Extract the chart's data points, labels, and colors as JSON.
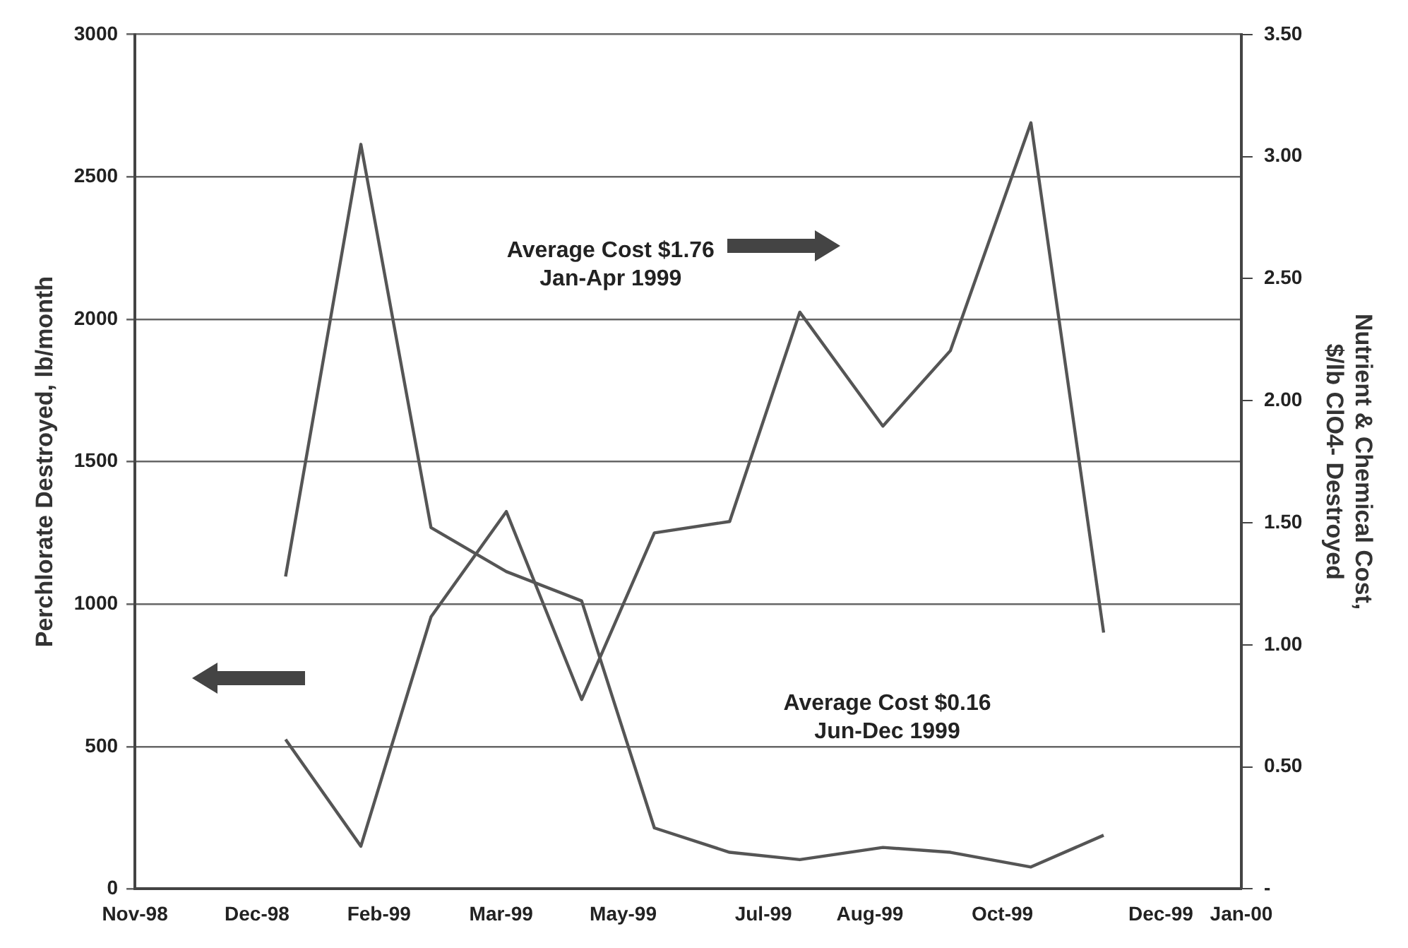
{
  "chart_data": {
    "type": "line",
    "x": [
      "1998-12-29",
      "1999-01-27",
      "1999-02-23",
      "1999-03-24",
      "1999-04-22",
      "1999-05-20",
      "1999-06-18",
      "1999-07-15",
      "1999-08-16",
      "1999-09-11",
      "1999-10-12",
      "1999-11-09"
    ],
    "series": [
      {
        "color": "#555555",
        "values": [
          525,
          150,
          955,
          1325,
          665,
          1250,
          1290,
          2025,
          1625,
          1890,
          2690,
          900
        ]
      },
      {
        "color": "#555555",
        "axis": "y2",
        "values": [
          1.28,
          3.05,
          1.48,
          1.3,
          1.18,
          0.25,
          0.15,
          0.12,
          0.17,
          0.15,
          0.09,
          0.22
        ]
      }
    ],
    "ylabel": "Perchlorate Destroyed, lb/month",
    "y2label": "Nutrient & Chemical Cost,\n$/lb ClO4- Destroyed",
    "xlim": [
      "1998-11-01",
      "2000-01-01"
    ],
    "xticks": [
      {
        "value": "1998-11-01",
        "label": "Nov-98"
      },
      {
        "value": "1998-12-18",
        "label": "Dec-98"
      },
      {
        "value": "1999-02-03",
        "label": "Feb-99"
      },
      {
        "value": "1999-03-22",
        "label": "Mar-99"
      },
      {
        "value": "1999-05-08",
        "label": "May-99"
      },
      {
        "value": "1999-07-01",
        "label": "Jul-99"
      },
      {
        "value": "1999-08-11",
        "label": "Aug-99"
      },
      {
        "value": "1999-10-01",
        "label": "Oct-99"
      },
      {
        "value": "1999-12-01",
        "label": "Dec-99"
      },
      {
        "value": "2000-01-01",
        "label": "Jan-00"
      }
    ],
    "ylim": [
      0,
      3000
    ],
    "yticks": [
      0,
      500,
      1000,
      1500,
      2000,
      2500,
      3000
    ],
    "y2lim": [
      0,
      3.5
    ],
    "y2ticks": [
      {
        "value": 0,
        "label": "-"
      },
      {
        "value": 0.5,
        "label": "0.50"
      },
      {
        "value": 1,
        "label": "1.00"
      },
      {
        "value": 1.5,
        "label": "1.50"
      },
      {
        "value": 2,
        "label": "2.00"
      },
      {
        "value": 2.5,
        "label": "2.50"
      },
      {
        "value": 3,
        "label": "3.00"
      },
      {
        "value": 3.5,
        "label": "3.50"
      }
    ],
    "annotations": [
      "Average Cost $1.76\nJan-Apr 1999",
      "Average Cost $0.16\nJun-Dec 1999"
    ],
    "grid": "y",
    "legend": false,
    "marker": "none",
    "line_style": "solid"
  }
}
